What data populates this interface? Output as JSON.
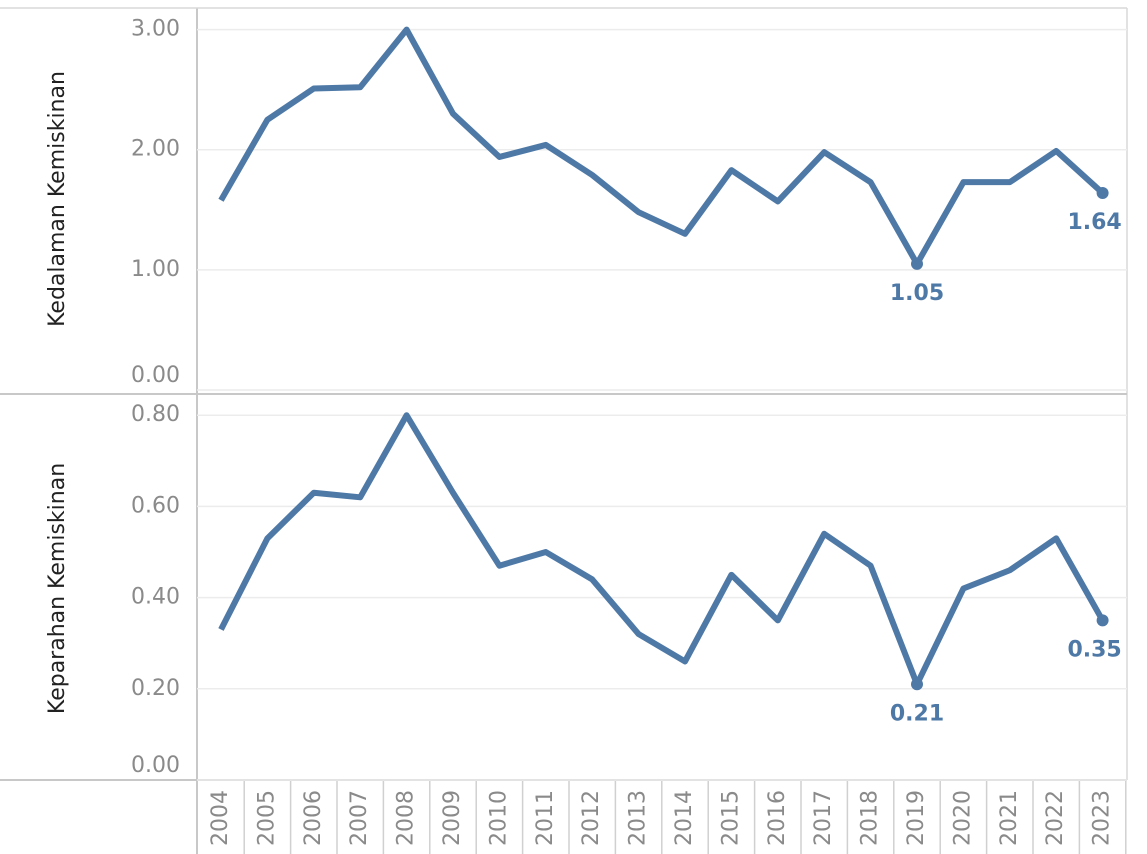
{
  "chart_data": [
    {
      "type": "line",
      "y_label": "Kedalaman Kemiskinan",
      "color": "#4e79a7",
      "grid": true,
      "values": [
        1.58,
        2.25,
        2.51,
        2.52,
        3.0,
        2.3,
        1.94,
        2.04,
        1.79,
        1.48,
        1.3,
        1.83,
        1.57,
        1.98,
        1.73,
        1.05,
        1.73,
        1.73,
        1.99,
        1.64
      ],
      "value_labels": [
        null,
        null,
        null,
        null,
        null,
        null,
        null,
        null,
        null,
        null,
        null,
        null,
        null,
        null,
        null,
        "1.05",
        null,
        null,
        null,
        "1.64"
      ],
      "ylim": [
        0,
        3.18
      ],
      "yticks": [
        {
          "value": 0,
          "label": "0.00"
        },
        {
          "value": 1,
          "label": "1.00"
        },
        {
          "value": 2,
          "label": "2.00"
        },
        {
          "value": 3,
          "label": "3.00"
        }
      ]
    },
    {
      "type": "line",
      "y_label": "Keparahan Kemiskinan",
      "color": "#4e79a7",
      "grid": true,
      "categories": [
        "2004",
        "2005",
        "2006",
        "2007",
        "2008",
        "2009",
        "2010",
        "2011",
        "2012",
        "2013",
        "2014",
        "2015",
        "2016",
        "2017",
        "2018",
        "2019",
        "2020",
        "2021",
        "2022",
        "2023"
      ],
      "values": [
        0.33,
        0.53,
        0.63,
        0.62,
        0.8,
        0.63,
        0.47,
        0.5,
        0.44,
        0.32,
        0.26,
        0.45,
        0.35,
        0.54,
        0.47,
        0.21,
        0.42,
        0.46,
        0.53,
        0.35
      ],
      "value_labels": [
        null,
        null,
        null,
        null,
        null,
        null,
        null,
        null,
        null,
        null,
        null,
        null,
        null,
        null,
        null,
        "0.21",
        null,
        null,
        null,
        "0.35"
      ],
      "ylim": [
        0,
        0.84
      ],
      "yticks": [
        {
          "value": 0,
          "label": "0.00"
        },
        {
          "value": 0.2,
          "label": "0.20"
        },
        {
          "value": 0.4,
          "label": "0.40"
        },
        {
          "value": 0.6,
          "label": "0.60"
        },
        {
          "value": 0.8,
          "label": "0.80"
        }
      ]
    }
  ]
}
